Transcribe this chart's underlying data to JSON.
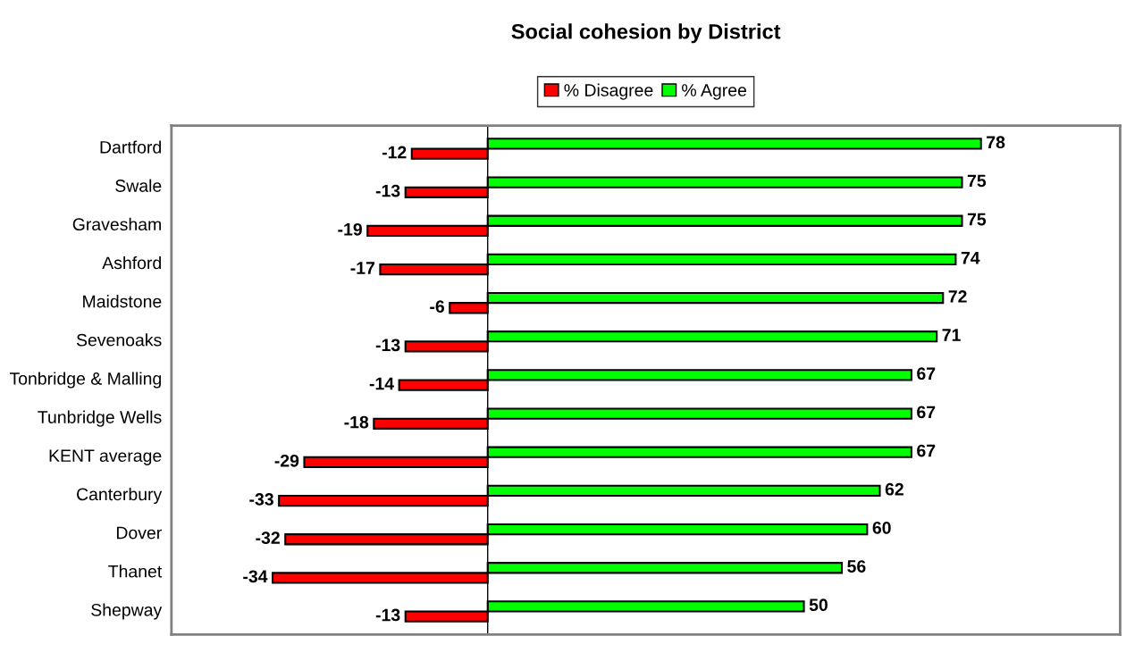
{
  "chart_data": {
    "type": "bar",
    "orientation": "horizontal",
    "title": "Social cohesion by District",
    "categories": [
      "Dartford",
      "Swale",
      "Gravesham",
      "Ashford",
      "Maidstone",
      "Sevenoaks",
      "Tonbridge & Malling",
      "Tunbridge Wells",
      "KENT average",
      "Canterbury",
      "Dover",
      "Thanet",
      "Shepway"
    ],
    "series": [
      {
        "name": "% Disagree",
        "color": "#ff0000",
        "values": [
          -12,
          -13,
          -19,
          -17,
          -6,
          -13,
          -14,
          -18,
          -29,
          -33,
          -32,
          -34,
          -13
        ]
      },
      {
        "name": "% Agree",
        "color": "#00ff00",
        "values": [
          78,
          75,
          75,
          74,
          72,
          71,
          67,
          67,
          67,
          62,
          60,
          56,
          50
        ]
      }
    ],
    "xlim": [
      -50,
      100
    ],
    "data_labels": true,
    "legend": "top"
  }
}
